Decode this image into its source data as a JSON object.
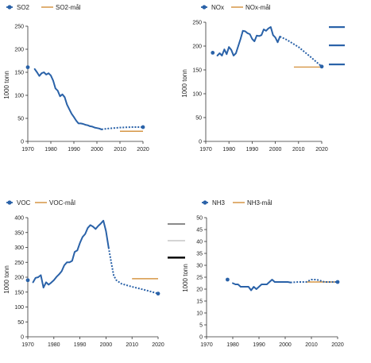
{
  "colors": {
    "series": "#2a62a8",
    "target": "#d69645",
    "axis": "#333333",
    "side_marks": [
      "#2a62a8",
      "#2a62a8",
      "#2a62a8",
      "#8a8a8a",
      "#d4d4d4",
      "#111111"
    ]
  },
  "chart_data": [
    {
      "type": "line",
      "legend": {
        "series": "SO2",
        "target": "SO2-mål"
      },
      "ylabel": "1000 tonn",
      "xlim": [
        1970,
        2020
      ],
      "ylim": [
        0,
        250
      ],
      "xticks": [
        1970,
        1980,
        1990,
        2000,
        2010,
        2020
      ],
      "yticks": [
        0,
        50,
        100,
        150,
        200,
        250
      ],
      "points": [
        [
          1970,
          161
        ]
      ],
      "solid": [
        [
          1973,
          157
        ],
        [
          1974,
          150
        ],
        [
          1975,
          142
        ],
        [
          1976,
          148
        ],
        [
          1977,
          150
        ],
        [
          1978,
          145
        ],
        [
          1979,
          148
        ],
        [
          1980,
          143
        ],
        [
          1981,
          132
        ],
        [
          1982,
          115
        ],
        [
          1983,
          110
        ],
        [
          1984,
          98
        ],
        [
          1985,
          102
        ],
        [
          1986,
          96
        ],
        [
          1987,
          80
        ],
        [
          1988,
          70
        ],
        [
          1989,
          60
        ],
        [
          1990,
          53
        ],
        [
          1991,
          45
        ],
        [
          1992,
          39
        ],
        [
          1993,
          39
        ],
        [
          1994,
          38
        ],
        [
          1995,
          36
        ],
        [
          1996,
          35
        ],
        [
          1997,
          33
        ],
        [
          1998,
          32
        ],
        [
          1999,
          30
        ],
        [
          2000,
          29
        ],
        [
          2001,
          28
        ],
        [
          2002,
          26
        ]
      ],
      "projection": [
        [
          2002,
          26
        ],
        [
          2005,
          28
        ],
        [
          2010,
          30
        ],
        [
          2015,
          31
        ],
        [
          2020,
          31
        ]
      ],
      "end_point": [
        2020,
        31
      ],
      "target_line": {
        "x": [
          2010,
          2020
        ],
        "y": 22
      }
    },
    {
      "type": "line",
      "legend": {
        "series": "NOx",
        "target": "NOx-mål"
      },
      "ylabel": "1000 tonn",
      "xlim": [
        1970,
        2020
      ],
      "ylim": [
        0,
        250
      ],
      "xticks": [
        1970,
        1980,
        1990,
        2000,
        2010,
        2020
      ],
      "yticks": [
        0,
        50,
        100,
        150,
        200,
        250
      ],
      "points": [
        [
          1973,
          186
        ]
      ],
      "solid": [
        [
          1975,
          180
        ],
        [
          1976,
          185
        ],
        [
          1977,
          180
        ],
        [
          1978,
          193
        ],
        [
          1979,
          183
        ],
        [
          1980,
          198
        ],
        [
          1981,
          192
        ],
        [
          1982,
          180
        ],
        [
          1983,
          185
        ],
        [
          1984,
          200
        ],
        [
          1985,
          215
        ],
        [
          1986,
          232
        ],
        [
          1987,
          231
        ],
        [
          1988,
          227
        ],
        [
          1989,
          225
        ],
        [
          1990,
          215
        ],
        [
          1991,
          210
        ],
        [
          1992,
          222
        ],
        [
          1993,
          221
        ],
        [
          1994,
          223
        ],
        [
          1995,
          235
        ],
        [
          1996,
          232
        ],
        [
          1997,
          237
        ],
        [
          1998,
          240
        ],
        [
          1999,
          223
        ],
        [
          2000,
          218
        ],
        [
          2001,
          208
        ],
        [
          2002,
          220
        ]
      ],
      "projection": [
        [
          2002,
          220
        ],
        [
          2005,
          213
        ],
        [
          2010,
          198
        ],
        [
          2015,
          178
        ],
        [
          2020,
          157
        ]
      ],
      "end_point": [
        2020,
        157
      ],
      "target_line": {
        "x": [
          2008,
          2020
        ],
        "y": 156
      }
    },
    {
      "type": "line",
      "legend": {
        "series": "VOC",
        "target": "VOC-mål"
      },
      "ylabel": "1000 tonn",
      "xlim": [
        1970,
        2020
      ],
      "ylim": [
        0,
        400
      ],
      "xticks": [
        1970,
        1980,
        1990,
        2000,
        2010,
        2020
      ],
      "yticks": [
        0,
        50,
        100,
        150,
        200,
        250,
        300,
        350,
        400
      ],
      "points": [
        [
          1970,
          190
        ]
      ],
      "solid": [
        [
          1972,
          183
        ],
        [
          1973,
          198
        ],
        [
          1974,
          200
        ],
        [
          1975,
          207
        ],
        [
          1976,
          165
        ],
        [
          1977,
          183
        ],
        [
          1978,
          175
        ],
        [
          1979,
          182
        ],
        [
          1980,
          190
        ],
        [
          1981,
          201
        ],
        [
          1982,
          210
        ],
        [
          1983,
          220
        ],
        [
          1984,
          240
        ],
        [
          1985,
          250
        ],
        [
          1986,
          250
        ],
        [
          1987,
          255
        ],
        [
          1988,
          285
        ],
        [
          1989,
          290
        ],
        [
          1990,
          315
        ],
        [
          1991,
          335
        ],
        [
          1992,
          345
        ],
        [
          1993,
          365
        ],
        [
          1994,
          375
        ],
        [
          1995,
          370
        ],
        [
          1996,
          362
        ],
        [
          1997,
          372
        ],
        [
          1998,
          380
        ],
        [
          1999,
          390
        ],
        [
          2000,
          355
        ],
        [
          2001,
          300
        ]
      ],
      "projection": [
        [
          2001,
          300
        ],
        [
          2002,
          250
        ],
        [
          2003,
          205
        ],
        [
          2004,
          190
        ],
        [
          2006,
          178
        ],
        [
          2010,
          168
        ],
        [
          2015,
          157
        ],
        [
          2020,
          145
        ]
      ],
      "end_point": [
        2020,
        145
      ],
      "target_line": {
        "x": [
          2010,
          2020
        ],
        "y": 195
      }
    },
    {
      "type": "line",
      "legend": {
        "series": "NH3",
        "target": "NH3-mål"
      },
      "ylabel": "1000 tonn",
      "xlim": [
        1970,
        2020
      ],
      "ylim": [
        0,
        50
      ],
      "xticks": [
        1970,
        1980,
        1990,
        2000,
        2010,
        2020
      ],
      "yticks": [
        0,
        5,
        10,
        15,
        20,
        25,
        30,
        35,
        40,
        45,
        50
      ],
      "points": [
        [
          1978,
          24
        ]
      ],
      "solid": [
        [
          1980,
          22.5
        ],
        [
          1981,
          22
        ],
        [
          1982,
          22
        ],
        [
          1983,
          21
        ],
        [
          1984,
          21
        ],
        [
          1985,
          21
        ],
        [
          1986,
          21
        ],
        [
          1987,
          19.5
        ],
        [
          1988,
          21
        ],
        [
          1989,
          20
        ],
        [
          1990,
          21
        ],
        [
          1991,
          22
        ],
        [
          1992,
          22
        ],
        [
          1993,
          22
        ],
        [
          1994,
          23
        ],
        [
          1995,
          24
        ],
        [
          1996,
          23
        ],
        [
          1997,
          23
        ],
        [
          1998,
          23
        ],
        [
          1999,
          23
        ],
        [
          2000,
          23
        ],
        [
          2001,
          23
        ],
        [
          2002,
          22.8
        ]
      ],
      "projection": [
        [
          2002,
          22.8
        ],
        [
          2005,
          23
        ],
        [
          2008,
          23
        ],
        [
          2010,
          24
        ],
        [
          2012,
          24
        ],
        [
          2015,
          23
        ],
        [
          2020,
          23
        ]
      ],
      "end_point": [
        2020,
        23
      ],
      "target_line": {
        "x": [
          2008,
          2020
        ],
        "y": 23
      }
    }
  ]
}
